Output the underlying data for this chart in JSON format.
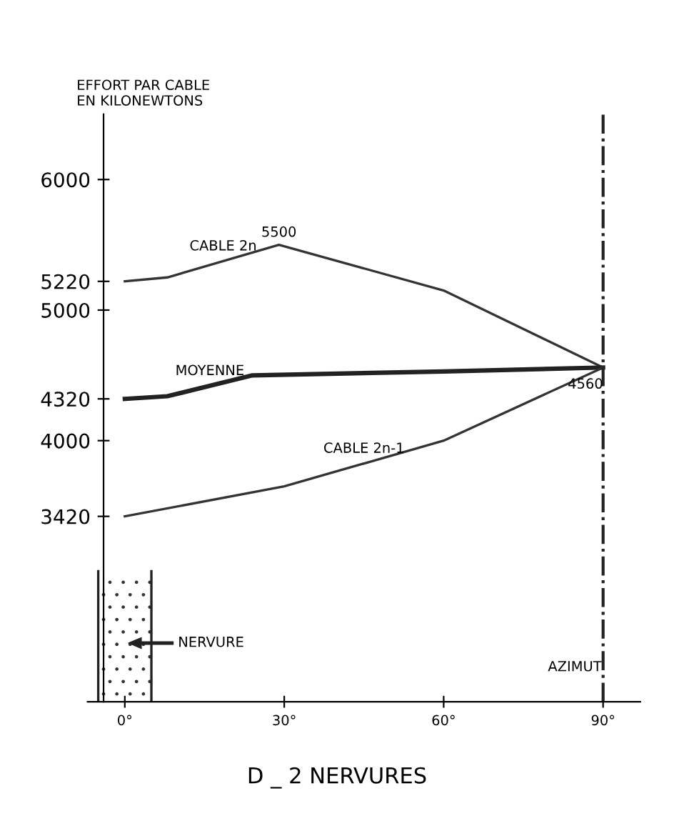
{
  "chart_data": {
    "type": "line",
    "title": "D _ 2 NERVURES",
    "ylabel": "EFFORT PAR CABLE\nEN KILONEWTONS",
    "xlabel": "AZIMUT",
    "xlim": [
      -7,
      97
    ],
    "ylim": [
      2000,
      6500
    ],
    "xticks": [
      {
        "value": 0,
        "label": "0°"
      },
      {
        "value": 30,
        "label": "30°"
      },
      {
        "value": 60,
        "label": "60°"
      },
      {
        "value": 90,
        "label": "90°"
      }
    ],
    "yticks": [
      3420,
      4000,
      4320,
      5000,
      5220,
      6000
    ],
    "grid": false,
    "marker": "none",
    "line_style": "solid",
    "ref_lines": [
      {
        "axis": "x",
        "value": 90,
        "line_style": "dashed",
        "color": "#222222"
      }
    ],
    "annotations": [
      "NERVURE"
    ],
    "series": [
      {
        "name": "CABLE 2n",
        "color": "#333333",
        "x": [
          0,
          8,
          29,
          60,
          90
        ],
        "values": [
          5220,
          5250,
          5500,
          5150,
          4560
        ],
        "value_labels": [
          null,
          null,
          "5500",
          null,
          null
        ]
      },
      {
        "name": "MOYENNE",
        "color": "#222222",
        "x": [
          0,
          8,
          24,
          60,
          90
        ],
        "values": [
          4320,
          4340,
          4500,
          4530,
          4560
        ],
        "value_labels": [
          null,
          null,
          null,
          null,
          "4560"
        ]
      },
      {
        "name": "CABLE 2n-1",
        "color": "#333333",
        "x": [
          0,
          30,
          60,
          90
        ],
        "values": [
          3420,
          3650,
          4000,
          4560
        ]
      }
    ]
  }
}
